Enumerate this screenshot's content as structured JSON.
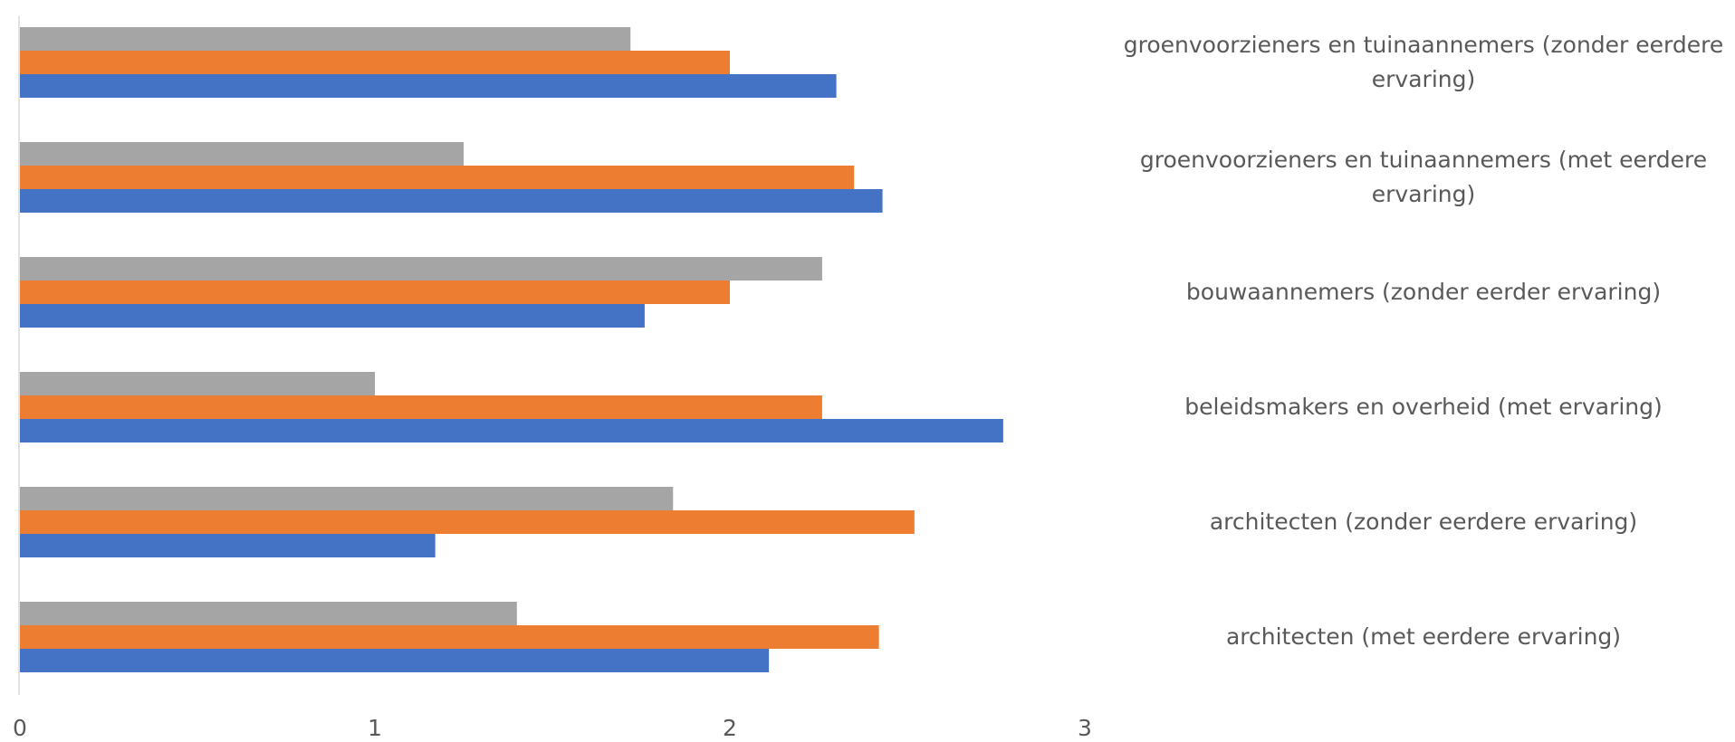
{
  "chart_data": {
    "type": "bar",
    "orientation": "horizontal",
    "title": "",
    "xlabel": "",
    "ylabel": "",
    "xlim": [
      0,
      3
    ],
    "x_ticks": [
      "0",
      "1",
      "2",
      "3"
    ],
    "grid": false,
    "legend": "none",
    "categories": [
      "groenvoorzieners en tuinaannemers (zonder eerdere ervaring)",
      "groenvoorzieners en tuinaannemers (met eerdere ervaring)",
      "bouwaannemers (zonder eerder ervaring)",
      "beleidsmakers en overheid (met ervaring)",
      "architecten (zonder eerdere ervaring)",
      "architecten (met eerdere ervaring)"
    ],
    "series": [
      {
        "color": "#A5A5A5",
        "values": [
          1.72,
          1.25,
          2.26,
          1.0,
          1.84,
          1.4
        ]
      },
      {
        "color": "#ED7D31",
        "values": [
          2.0,
          2.35,
          2.0,
          2.26,
          2.52,
          2.42
        ]
      },
      {
        "color": "#4472C4",
        "values": [
          2.3,
          2.43,
          1.76,
          2.77,
          1.17,
          2.11
        ]
      }
    ]
  }
}
